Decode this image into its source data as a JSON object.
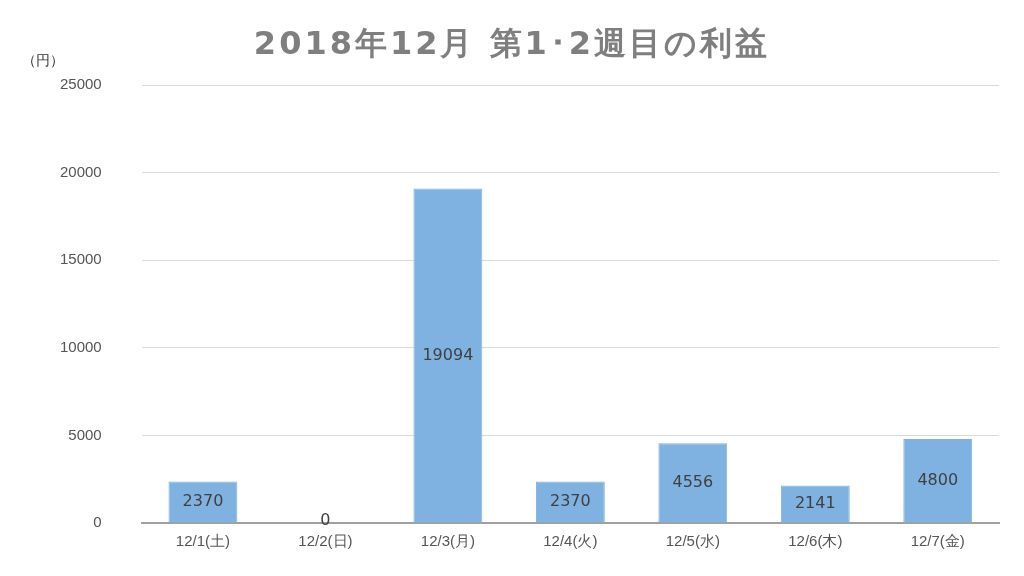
{
  "chart_data": {
    "type": "bar",
    "title": "2018年12月 第1･2週目の利益",
    "ylabel": "（円）",
    "categories": [
      "12/1(土)",
      "12/2(日)",
      "12/3(月)",
      "12/4(火)",
      "12/5(水)",
      "12/6(木)",
      "12/7(金)"
    ],
    "values": [
      2370,
      0,
      19094,
      2370,
      4556,
      2141,
      4800
    ],
    "color": "#7fb2e0",
    "ylim": [
      0,
      25000
    ],
    "yticks": [
      0,
      5000,
      10000,
      15000,
      20000,
      25000
    ],
    "grid": "y",
    "data_labels": true,
    "legend": false
  }
}
